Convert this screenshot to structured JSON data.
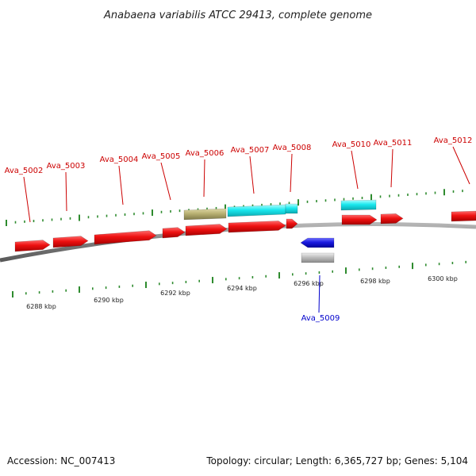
{
  "title": "Anabaena variabilis ATCC 29413, complete genome",
  "footer": {
    "accession": "Accession: NC_007413",
    "summary": "Topology: circular; Length: 6,365,727 bp; Genes: 5,104"
  },
  "colors": {
    "forward_cds": "#e8121a",
    "reverse_cds": "#1a1ae0",
    "cyan_feature": "#1ae8ee",
    "olive_feature": "#b8b072",
    "gray_feature": "#bdbdbd",
    "backbone": "#8c8c8c",
    "forward_label": "#cc0000",
    "reverse_label": "#0000cc",
    "tick": "#2e8b2e"
  },
  "kbp_labels": [
    "6288 kbp",
    "6290 kbp",
    "6292 kbp",
    "6294 kbp",
    "6296 kbp",
    "6298 kbp",
    "6300 kbp"
  ],
  "genes": [
    {
      "label": "Ava_5002",
      "strand": "forward"
    },
    {
      "label": "Ava_5003",
      "strand": "forward"
    },
    {
      "label": "Ava_5004",
      "strand": "forward"
    },
    {
      "label": "Ava_5005",
      "strand": "forward"
    },
    {
      "label": "Ava_5006",
      "strand": "forward"
    },
    {
      "label": "Ava_5007",
      "strand": "forward"
    },
    {
      "label": "Ava_5008",
      "strand": "forward"
    },
    {
      "label": "Ava_5009",
      "strand": "reverse"
    },
    {
      "label": "Ava_5010",
      "strand": "forward"
    },
    {
      "label": "Ava_5011",
      "strand": "forward"
    },
    {
      "label": "Ava_5012",
      "strand": "forward"
    }
  ]
}
